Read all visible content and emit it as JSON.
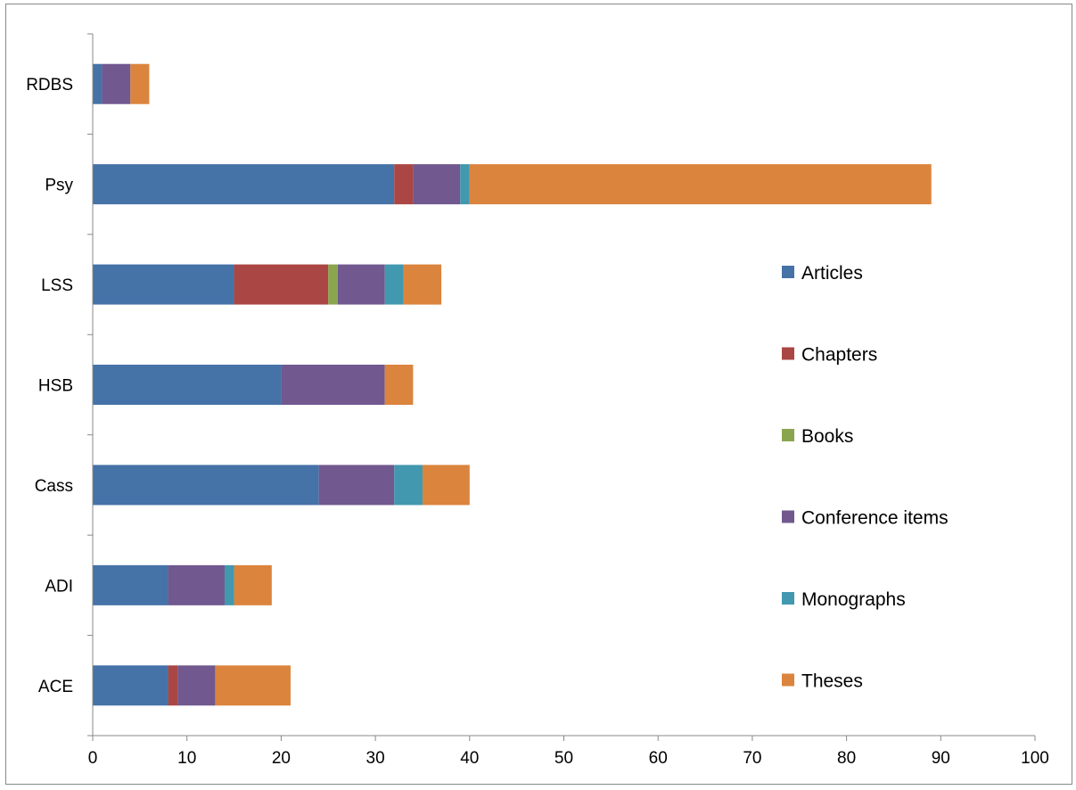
{
  "chart_data": {
    "type": "bar",
    "orientation": "horizontal",
    "stacked": true,
    "categories": [
      "ACE",
      "ADI",
      "Cass",
      "HSB",
      "LSS",
      "Psy",
      "RDBS"
    ],
    "series": [
      {
        "name": "Articles",
        "color": "#4572A7",
        "values": [
          8,
          8,
          24,
          20,
          15,
          32,
          1
        ]
      },
      {
        "name": "Chapters",
        "color": "#AA4643",
        "values": [
          1,
          0,
          0,
          0,
          10,
          2,
          0
        ]
      },
      {
        "name": "Books",
        "color": "#89A54E",
        "values": [
          0,
          0,
          0,
          0,
          1,
          0,
          0
        ]
      },
      {
        "name": "Conference items",
        "color": "#71588F",
        "values": [
          4,
          6,
          8,
          11,
          5,
          5,
          3
        ]
      },
      {
        "name": "Monographs",
        "color": "#4198AF",
        "values": [
          0,
          1,
          3,
          0,
          2,
          1,
          0
        ]
      },
      {
        "name": "Theses",
        "color": "#DB843D",
        "values": [
          8,
          4,
          5,
          3,
          4,
          49,
          2
        ]
      }
    ],
    "xlim": [
      0,
      100
    ],
    "xticks": [
      "0",
      "10",
      "20",
      "30",
      "40",
      "50",
      "60",
      "70",
      "80",
      "90",
      "100"
    ],
    "title": "",
    "xlabel": "",
    "ylabel": "",
    "grid": false,
    "legend_position": "right"
  }
}
